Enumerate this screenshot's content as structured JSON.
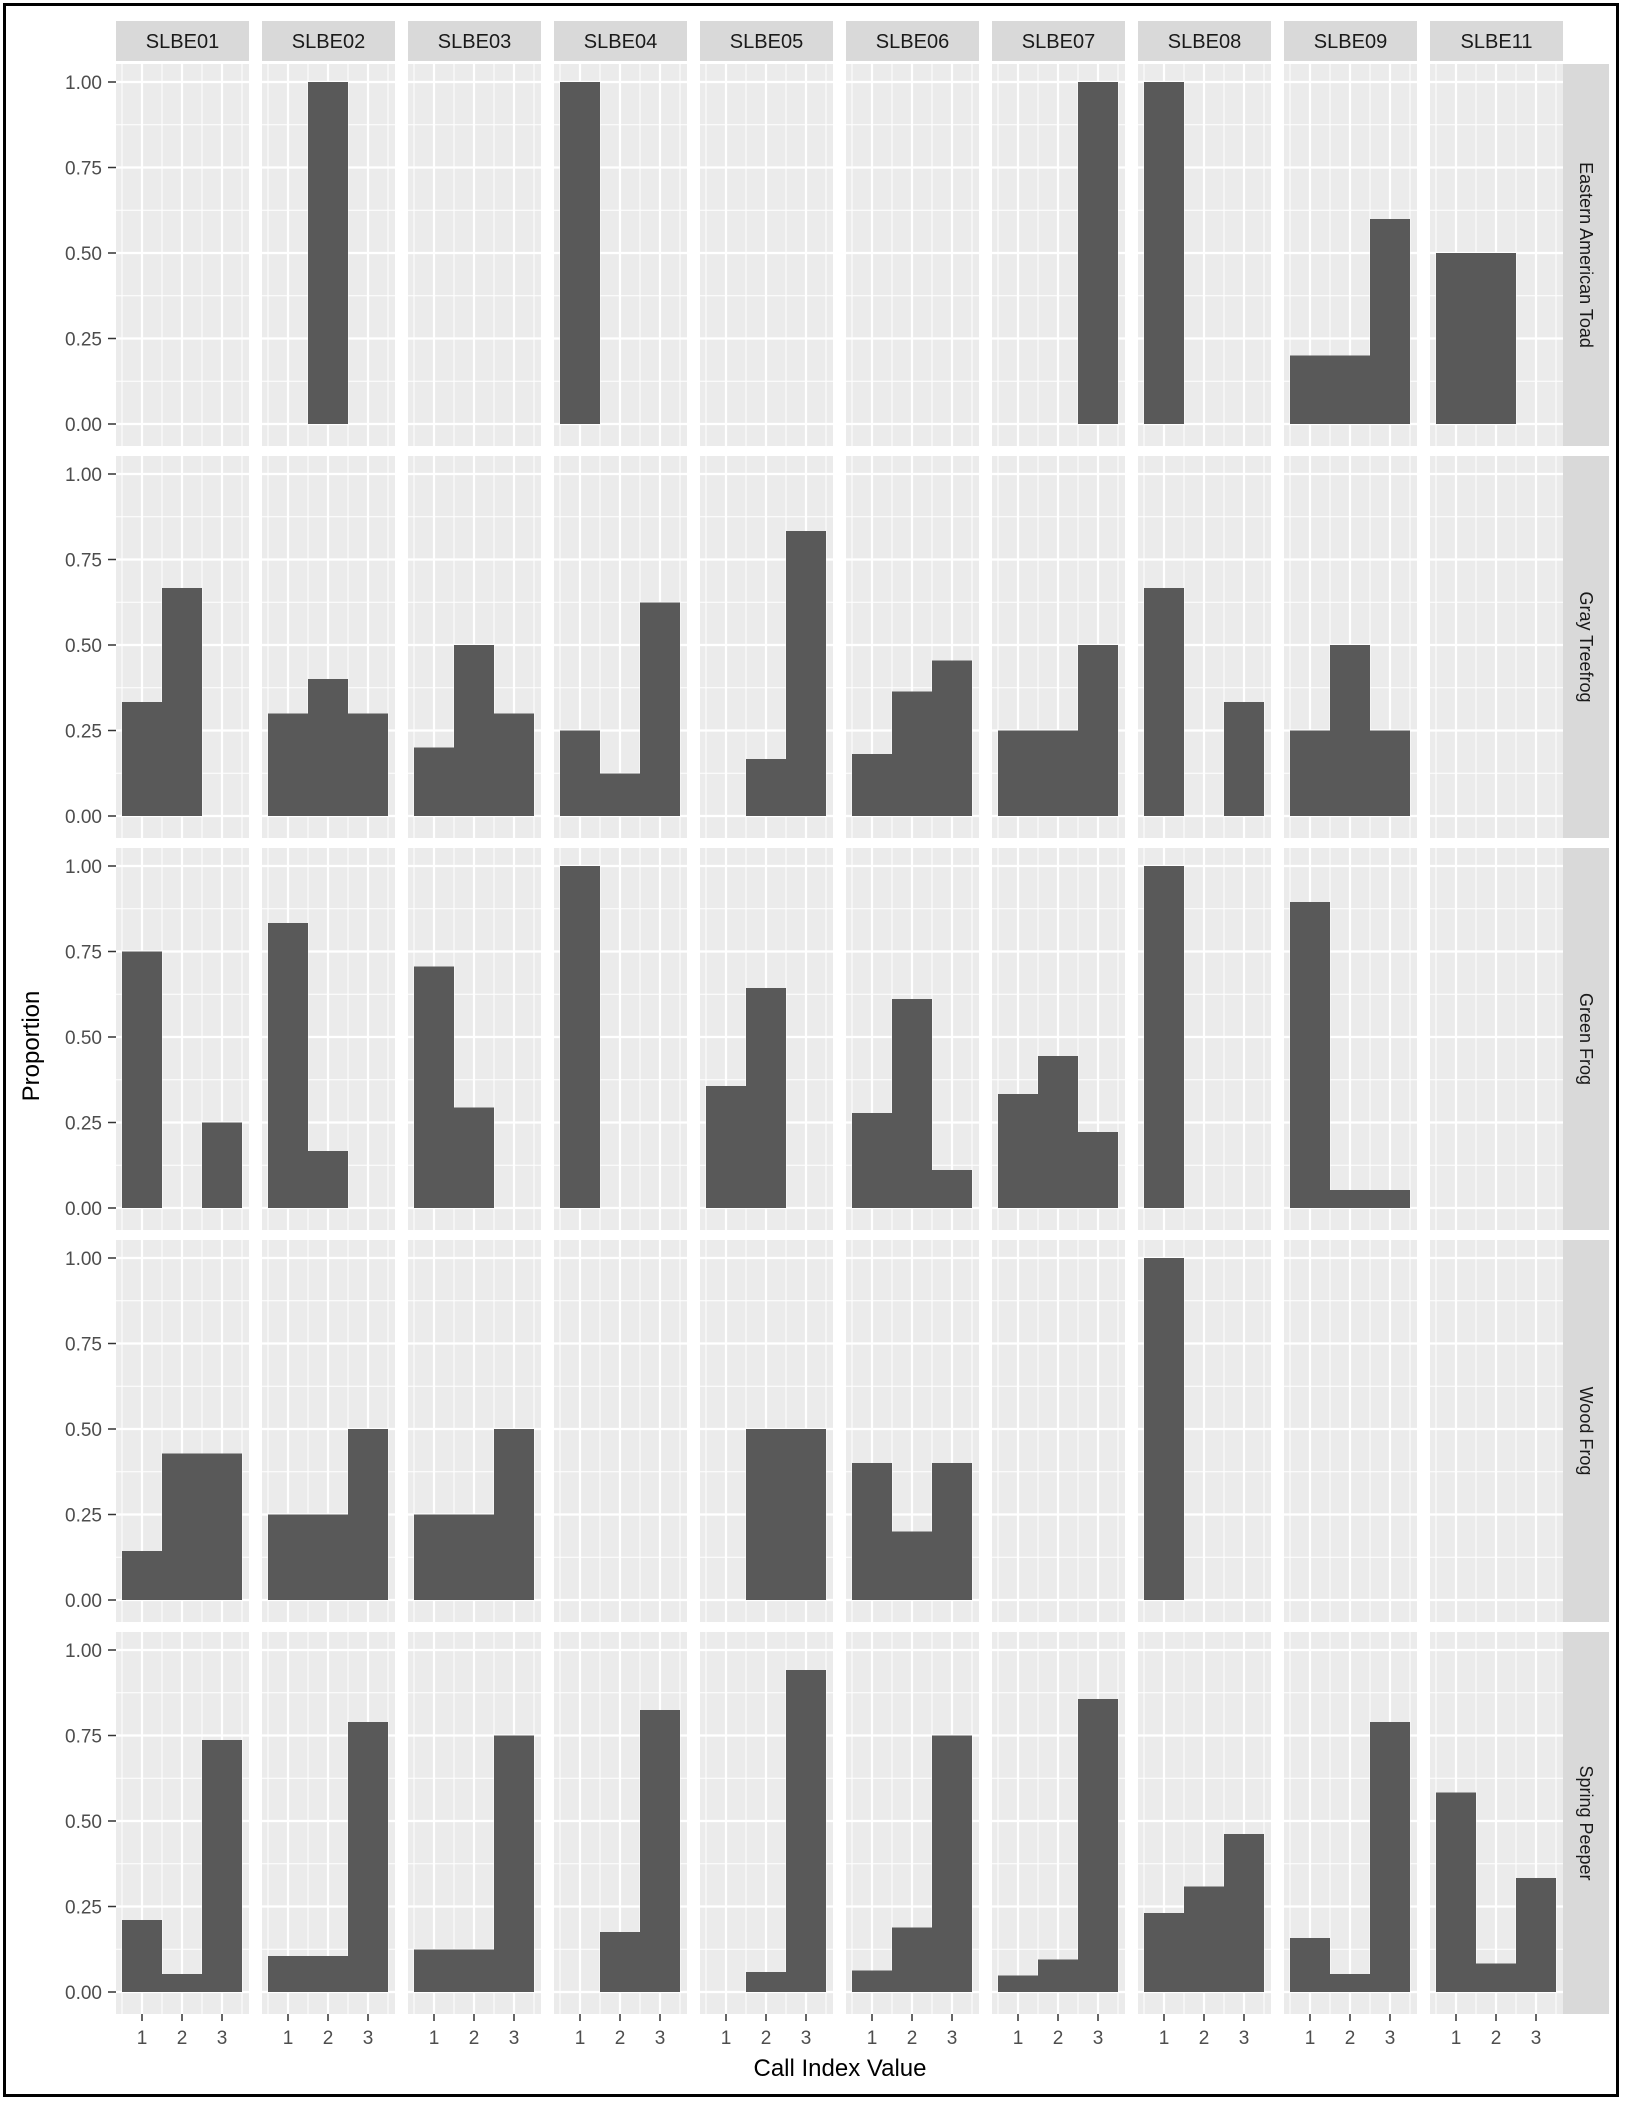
{
  "chart_data": {
    "type": "bar",
    "facet_layout": "grid",
    "xlabel": "Call Index Value",
    "ylabel": "Proportion",
    "x_ticks": [
      "1",
      "2",
      "3"
    ],
    "ylim": [
      0,
      1
    ],
    "y_ticks": [
      "0.00",
      "0.25",
      "0.50",
      "0.75",
      "1.00"
    ],
    "grid": true,
    "colors": {
      "bar": "#595959",
      "panel": "#ebebeb",
      "grid": "#ffffff",
      "strip": "#d9d9d9",
      "text": "#1a1a1a",
      "tick_text": "#4d4d4d"
    },
    "columns": [
      "SLBE01",
      "SLBE02",
      "SLBE03",
      "SLBE04",
      "SLBE05",
      "SLBE06",
      "SLBE07",
      "SLBE08",
      "SLBE09",
      "SLBE11"
    ],
    "rows": [
      "Eastern American Toad",
      "Gray Treefrog",
      "Green Frog",
      "Wood Frog",
      "Spring Peeper"
    ],
    "values": [
      [
        null,
        [
          0,
          1,
          0
        ],
        null,
        [
          1,
          0,
          0
        ],
        null,
        null,
        [
          0,
          0,
          1
        ],
        [
          1,
          0,
          0
        ],
        [
          0.2,
          0.2,
          0.6
        ],
        [
          0.5,
          0.5,
          0
        ]
      ],
      [
        [
          0.333,
          0.667,
          0
        ],
        [
          0.3,
          0.4,
          0.3
        ],
        [
          0.2,
          0.5,
          0.3
        ],
        [
          0.25,
          0.125,
          0.625
        ],
        [
          0,
          0.167,
          0.833
        ],
        [
          0.182,
          0.364,
          0.455
        ],
        [
          0.25,
          0.25,
          0.5
        ],
        [
          0.667,
          0,
          0.333
        ],
        [
          0.25,
          0.5,
          0.25
        ],
        null
      ],
      [
        [
          0.75,
          0,
          0.25
        ],
        [
          0.833,
          0.167,
          0
        ],
        [
          0.706,
          0.294,
          0
        ],
        [
          1,
          0,
          0
        ],
        [
          0.357,
          0.643,
          0
        ],
        [
          0.278,
          0.611,
          0.111
        ],
        [
          0.333,
          0.444,
          0.222
        ],
        [
          1,
          0,
          0
        ],
        [
          0.895,
          0.053,
          0.053
        ],
        null
      ],
      [
        [
          0.143,
          0.429,
          0.429
        ],
        [
          0.25,
          0.25,
          0.5
        ],
        [
          0.25,
          0.25,
          0.5
        ],
        null,
        [
          0,
          0.5,
          0.5
        ],
        [
          0.4,
          0.2,
          0.4
        ],
        null,
        [
          1,
          0,
          0
        ],
        null,
        null
      ],
      [
        [
          0.211,
          0.053,
          0.737
        ],
        [
          0.105,
          0.105,
          0.789
        ],
        [
          0.125,
          0.125,
          0.75
        ],
        [
          0,
          0.176,
          0.824
        ],
        [
          0,
          0.059,
          0.941
        ],
        [
          0.063,
          0.188,
          0.75
        ],
        [
          0.048,
          0.095,
          0.857
        ],
        [
          0.231,
          0.308,
          0.462
        ],
        [
          0.158,
          0.053,
          0.789
        ],
        [
          0.583,
          0.083,
          0.333
        ]
      ]
    ]
  }
}
